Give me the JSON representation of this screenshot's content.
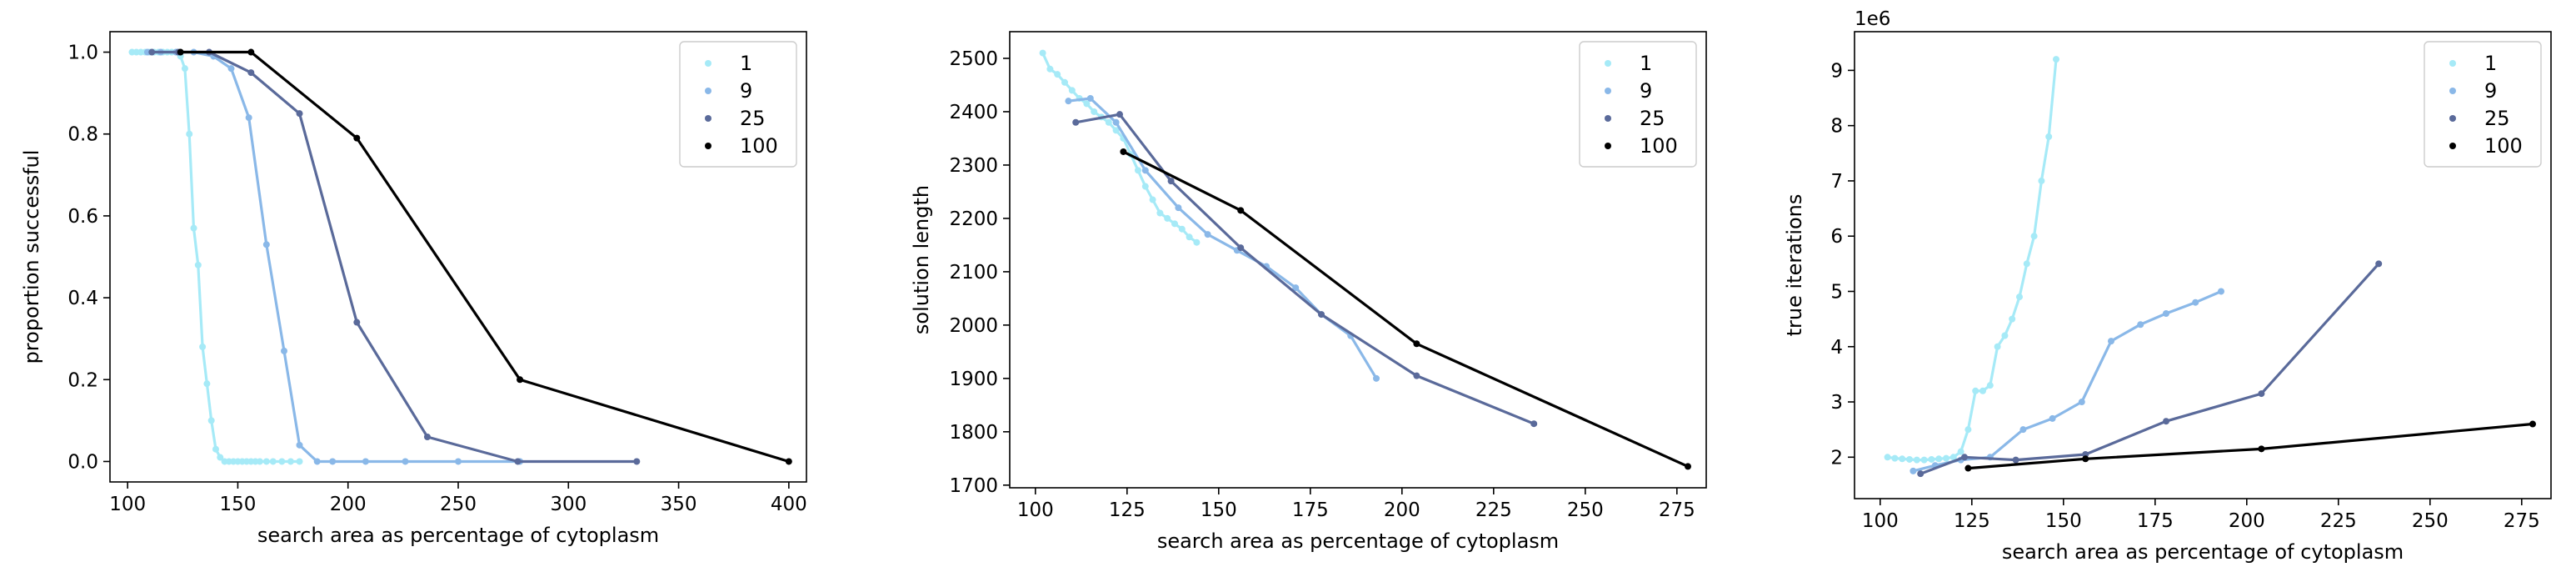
{
  "colors": {
    "1": "#a6eaf7",
    "9": "#8ab8e8",
    "25": "#5a6a9a",
    "100": "#000000"
  },
  "chart_data": [
    {
      "type": "line",
      "xlabel": "search area as percentage of cytoplasm",
      "ylabel": "proportion successful",
      "xlim": [
        92,
        408
      ],
      "ylim": [
        -0.05,
        1.05
      ],
      "xticks": [
        100,
        150,
        200,
        250,
        300,
        350,
        400
      ],
      "yticks": [
        0.0,
        0.2,
        0.4,
        0.6,
        0.8,
        1.0
      ],
      "ytick_labels": [
        "0.0",
        "0.2",
        "0.4",
        "0.6",
        "0.8",
        "1.0"
      ],
      "offset_text": "",
      "legend": "top-right",
      "series": [
        {
          "name": "1",
          "x": [
            102,
            104,
            106,
            108,
            110,
            112,
            114,
            116,
            118,
            120,
            122,
            124,
            126,
            128,
            130,
            132,
            134,
            136,
            138,
            140,
            142,
            144,
            146,
            148,
            150,
            152,
            154,
            156,
            158,
            160,
            163,
            166,
            170,
            174,
            178
          ],
          "y": [
            1,
            1,
            1,
            1,
            1,
            1,
            1,
            1,
            1,
            1,
            1,
            0.99,
            0.96,
            0.8,
            0.57,
            0.48,
            0.28,
            0.19,
            0.1,
            0.03,
            0.01,
            0,
            0,
            0,
            0,
            0,
            0,
            0,
            0,
            0,
            0,
            0,
            0,
            0,
            0
          ]
        },
        {
          "name": "9",
          "x": [
            109,
            115,
            122,
            130,
            139,
            147,
            155,
            163,
            171,
            178,
            186,
            193,
            208,
            226,
            250,
            278
          ],
          "y": [
            1,
            1,
            1,
            1,
            0.99,
            0.96,
            0.84,
            0.53,
            0.27,
            0.04,
            0,
            0,
            0,
            0,
            0,
            0
          ]
        },
        {
          "name": "25",
          "x": [
            111,
            123,
            137,
            156,
            178,
            204,
            236,
            277,
            331
          ],
          "y": [
            1,
            1,
            1,
            0.95,
            0.85,
            0.34,
            0.06,
            0,
            0
          ]
        },
        {
          "name": "100",
          "x": [
            124,
            156,
            204,
            278,
            400
          ],
          "y": [
            1,
            1,
            0.79,
            0.2,
            0
          ]
        }
      ]
    },
    {
      "type": "line",
      "xlabel": "search area as percentage of cytoplasm",
      "ylabel": "solution length",
      "xlim": [
        93,
        283
      ],
      "ylim": [
        1695,
        2550
      ],
      "xticks": [
        100,
        125,
        150,
        175,
        200,
        225,
        250,
        275
      ],
      "yticks": [
        1700,
        1800,
        1900,
        2000,
        2100,
        2200,
        2300,
        2400,
        2500
      ],
      "ytick_labels": [
        "1700",
        "1800",
        "1900",
        "2000",
        "2100",
        "2200",
        "2300",
        "2400",
        "2500"
      ],
      "offset_text": "",
      "legend": "top-right",
      "series": [
        {
          "name": "1",
          "x": [
            102,
            104,
            106,
            108,
            110,
            112,
            114,
            116,
            118,
            120,
            122,
            124,
            126,
            128,
            130,
            132,
            134,
            136,
            138,
            140,
            142,
            144
          ],
          "y": [
            2510,
            2480,
            2470,
            2455,
            2440,
            2425,
            2415,
            2400,
            2390,
            2380,
            2365,
            2350,
            2320,
            2290,
            2260,
            2235,
            2210,
            2200,
            2190,
            2180,
            2165,
            2155
          ]
        },
        {
          "name": "9",
          "x": [
            109,
            115,
            122,
            130,
            139,
            147,
            155,
            163,
            171,
            178,
            186,
            193
          ],
          "y": [
            2420,
            2425,
            2380,
            2290,
            2220,
            2170,
            2140,
            2110,
            2070,
            2020,
            1980,
            1900
          ]
        },
        {
          "name": "25",
          "x": [
            111,
            123,
            137,
            156,
            178,
            204,
            236
          ],
          "y": [
            2380,
            2395,
            2270,
            2145,
            2020,
            1905,
            1815
          ]
        },
        {
          "name": "100",
          "x": [
            124,
            156,
            204,
            278
          ],
          "y": [
            2325,
            2215,
            1965,
            1735
          ]
        }
      ]
    },
    {
      "type": "line",
      "xlabel": "search area as percentage of cytoplasm",
      "ylabel": "true iterations",
      "xlim": [
        93,
        283
      ],
      "ylim": [
        1.25,
        9.7
      ],
      "xticks": [
        100,
        125,
        150,
        175,
        200,
        225,
        250,
        275
      ],
      "yticks": [
        2,
        3,
        4,
        5,
        6,
        7,
        8,
        9
      ],
      "ytick_labels": [
        "2",
        "3",
        "4",
        "5",
        "6",
        "7",
        "8",
        "9"
      ],
      "offset_text": "1e6",
      "legend": "top-right",
      "series": [
        {
          "name": "1",
          "x": [
            102,
            104,
            106,
            108,
            110,
            112,
            114,
            116,
            118,
            120,
            122,
            124,
            126,
            128,
            130,
            132,
            134,
            136,
            138,
            140,
            142,
            144,
            146,
            148
          ],
          "y": [
            2.0,
            1.98,
            1.97,
            1.96,
            1.95,
            1.95,
            1.96,
            1.97,
            1.98,
            2.0,
            2.1,
            2.5,
            3.2,
            3.2,
            3.3,
            4.0,
            4.2,
            4.5,
            4.9,
            5.5,
            6.0,
            7.0,
            7.8,
            9.2
          ]
        },
        {
          "name": "9",
          "x": [
            109,
            115,
            122,
            130,
            139,
            147,
            155,
            163,
            171,
            178,
            186,
            193
          ],
          "y": [
            1.75,
            1.85,
            1.95,
            2.0,
            2.5,
            2.7,
            3.0,
            4.1,
            4.4,
            4.6,
            4.8,
            5.0
          ]
        },
        {
          "name": "25",
          "x": [
            111,
            123,
            137,
            156,
            178,
            204,
            236
          ],
          "y": [
            1.7,
            2.0,
            1.95,
            2.05,
            2.65,
            3.15,
            5.5
          ]
        },
        {
          "name": "100",
          "x": [
            124,
            156,
            204,
            278
          ],
          "y": [
            1.8,
            1.97,
            2.15,
            2.6
          ]
        }
      ]
    }
  ]
}
